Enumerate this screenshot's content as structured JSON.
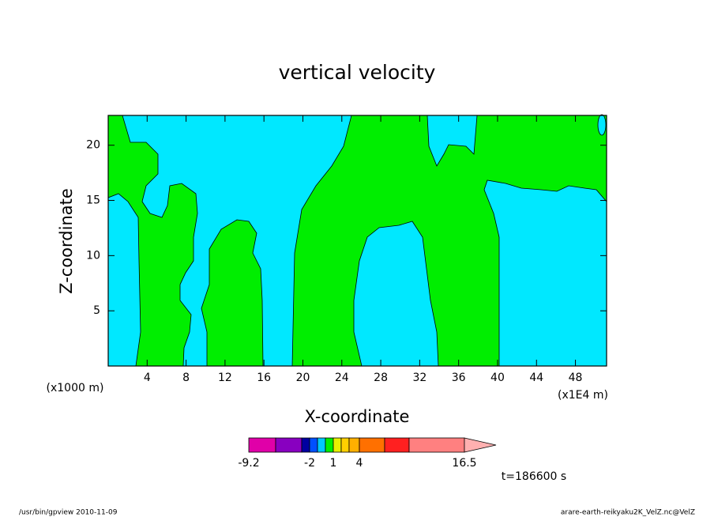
{
  "chart_data": {
    "type": "contour",
    "title": "vertical velocity",
    "x_label": "X-coordinate",
    "y_label": "Z-coordinate",
    "x_unit_left": "(x1000 m)",
    "x_unit_right": "(x1E4 m)",
    "xlim": [
      0,
      51.2
    ],
    "ylim": [
      0,
      22.7
    ],
    "xticks": [
      4,
      8,
      12,
      16,
      20,
      24,
      28,
      32,
      36,
      40,
      44,
      48
    ],
    "yticks": [
      5,
      10,
      15,
      20
    ],
    "colorbar": {
      "colors": [
        "#e000a8",
        "#8800c0",
        "#0000a0",
        "#0050ff",
        "#00c8ff",
        "#00ee00",
        "#e8f000",
        "#ffd000",
        "#ffb000",
        "#ff7000",
        "#ff2020",
        "#ff8080"
      ],
      "extend_color": "#ffb0b0",
      "labels": [
        -9.2,
        -2,
        1,
        4,
        16.5
      ]
    },
    "time_label": "t=186600 s",
    "footer_left": "/usr/bin/gpview   2010-11-09",
    "footer_right": "arare-earth-reikyaku2K_VelZ.nc@VelZ"
  }
}
